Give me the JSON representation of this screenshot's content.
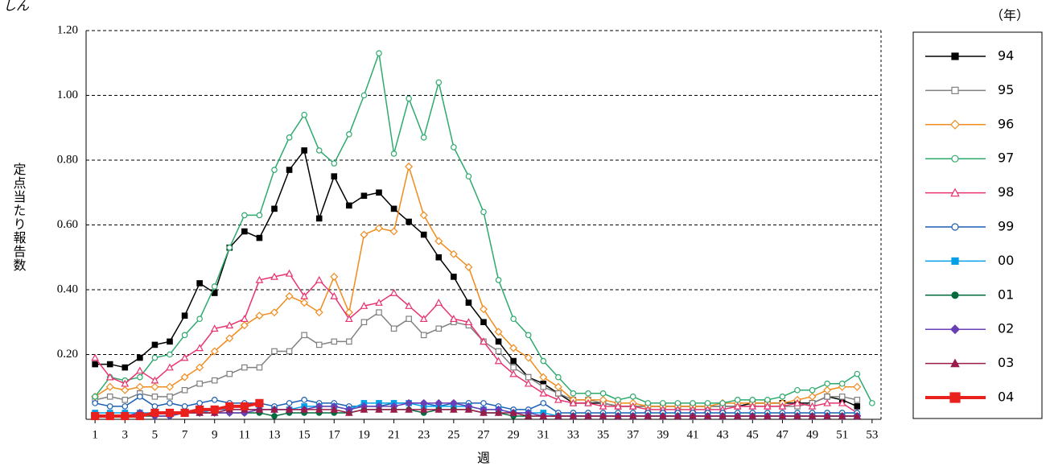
{
  "chart_data": {
    "type": "line",
    "title": "しん",
    "legend_title": "（年）",
    "ylabel": "定点当たり報告数",
    "xlabel": "週",
    "x": [
      1,
      2,
      3,
      4,
      5,
      6,
      7,
      8,
      9,
      10,
      11,
      12,
      13,
      14,
      15,
      16,
      17,
      18,
      19,
      20,
      21,
      22,
      23,
      24,
      25,
      26,
      27,
      28,
      29,
      30,
      31,
      32,
      33,
      34,
      35,
      36,
      37,
      38,
      39,
      40,
      41,
      42,
      43,
      44,
      45,
      46,
      47,
      48,
      49,
      50,
      51,
      52,
      53
    ],
    "xlim": [
      0.4,
      53.6
    ],
    "xticks": [
      1,
      3,
      5,
      7,
      9,
      11,
      13,
      15,
      17,
      19,
      21,
      23,
      25,
      27,
      29,
      31,
      33,
      35,
      37,
      39,
      41,
      43,
      45,
      47,
      49,
      51,
      53
    ],
    "ylim": [
      0,
      1.2
    ],
    "yticks": [
      {
        "value": 0.2,
        "label": "0.20"
      },
      {
        "value": 0.4,
        "label": "0.40"
      },
      {
        "value": 0.6,
        "label": "0.60"
      },
      {
        "value": 0.8,
        "label": "0.80"
      },
      {
        "value": 1.0,
        "label": "1.00"
      },
      {
        "value": 1.2,
        "label": "1.20"
      }
    ],
    "grid": true,
    "legend": "right",
    "series": [
      {
        "name": "94",
        "color": "#000000",
        "marker": "square",
        "filled": true,
        "line_width": 1.5,
        "values": [
          0.17,
          0.17,
          0.16,
          0.19,
          0.23,
          0.24,
          0.32,
          0.42,
          0.39,
          0.53,
          0.58,
          0.56,
          0.65,
          0.77,
          0.83,
          0.62,
          0.75,
          0.66,
          0.69,
          0.7,
          0.65,
          0.61,
          0.57,
          0.5,
          0.44,
          0.36,
          0.3,
          0.24,
          0.18,
          0.13,
          0.11,
          0.08,
          0.05,
          0.05,
          0.05,
          0.04,
          0.04,
          0.04,
          0.04,
          0.04,
          0.04,
          0.04,
          0.04,
          0.04,
          0.05,
          0.05,
          0.05,
          0.05,
          0.05,
          0.07,
          0.06,
          0.04,
          null
        ]
      },
      {
        "name": "95",
        "color": "#808080",
        "marker": "square",
        "filled": false,
        "line_width": 1.5,
        "values": [
          0.06,
          0.07,
          0.06,
          0.08,
          0.07,
          0.07,
          0.09,
          0.11,
          0.12,
          0.14,
          0.16,
          0.16,
          0.21,
          0.21,
          0.26,
          0.23,
          0.24,
          0.24,
          0.3,
          0.33,
          0.28,
          0.31,
          0.26,
          0.28,
          0.3,
          0.29,
          0.24,
          0.21,
          0.16,
          0.13,
          0.1,
          0.08,
          0.06,
          0.06,
          0.05,
          0.04,
          0.04,
          0.04,
          0.04,
          0.04,
          0.04,
          0.04,
          0.04,
          0.04,
          0.04,
          0.04,
          0.04,
          0.04,
          0.05,
          0.07,
          0.07,
          0.06,
          null
        ]
      },
      {
        "name": "96",
        "color": "#f08c1e",
        "marker": "diamond",
        "filled": false,
        "line_width": 1.5,
        "values": [
          0.07,
          0.1,
          0.09,
          0.1,
          0.1,
          0.1,
          0.13,
          0.16,
          0.21,
          0.25,
          0.29,
          0.32,
          0.33,
          0.38,
          0.36,
          0.33,
          0.44,
          0.33,
          0.57,
          0.59,
          0.58,
          0.78,
          0.63,
          0.55,
          0.51,
          0.47,
          0.34,
          0.27,
          0.22,
          0.19,
          0.13,
          0.1,
          0.06,
          0.06,
          0.06,
          0.05,
          0.05,
          0.04,
          0.04,
          0.04,
          0.04,
          0.04,
          0.05,
          0.05,
          0.05,
          0.05,
          0.05,
          0.06,
          0.07,
          0.09,
          0.1,
          0.1,
          null
        ]
      },
      {
        "name": "97",
        "color": "#2eaa6e",
        "marker": "circle",
        "filled": false,
        "line_width": 1.5,
        "values": [
          0.07,
          0.13,
          0.12,
          0.13,
          0.19,
          0.2,
          0.26,
          0.31,
          0.41,
          0.53,
          0.63,
          0.63,
          0.77,
          0.87,
          0.94,
          0.83,
          0.79,
          0.88,
          1.0,
          1.13,
          0.82,
          0.99,
          0.87,
          1.04,
          0.84,
          0.75,
          0.64,
          0.43,
          0.31,
          0.26,
          0.18,
          0.13,
          0.08,
          0.08,
          0.08,
          0.06,
          0.07,
          0.05,
          0.05,
          0.05,
          0.05,
          0.05,
          0.05,
          0.06,
          0.06,
          0.06,
          0.07,
          0.09,
          0.09,
          0.11,
          0.11,
          0.14,
          0.05
        ]
      },
      {
        "name": "98",
        "color": "#e8336f",
        "marker": "triangle",
        "filled": false,
        "line_width": 1.5,
        "values": [
          0.19,
          0.13,
          0.11,
          0.15,
          0.12,
          0.16,
          0.19,
          0.22,
          0.28,
          0.29,
          0.31,
          0.43,
          0.44,
          0.45,
          0.38,
          0.43,
          0.38,
          0.31,
          0.35,
          0.36,
          0.39,
          0.35,
          0.31,
          0.36,
          0.31,
          0.3,
          0.24,
          0.18,
          0.14,
          0.11,
          0.08,
          0.06,
          0.05,
          0.05,
          0.04,
          0.04,
          0.04,
          0.03,
          0.03,
          0.03,
          0.03,
          0.03,
          0.03,
          0.04,
          0.04,
          0.04,
          0.04,
          0.05,
          0.04,
          0.05,
          0.05,
          0.02,
          null
        ]
      },
      {
        "name": "99",
        "color": "#1a5fb4",
        "marker": "circle",
        "filled": false,
        "line_width": 1.5,
        "values": [
          0.05,
          0.04,
          0.04,
          0.07,
          0.04,
          0.05,
          0.04,
          0.05,
          0.06,
          0.05,
          0.05,
          0.05,
          0.04,
          0.05,
          0.06,
          0.05,
          0.05,
          0.04,
          0.04,
          0.04,
          0.05,
          0.05,
          0.05,
          0.04,
          0.05,
          0.05,
          0.05,
          0.04,
          0.03,
          0.03,
          0.05,
          0.02,
          0.02,
          0.02,
          0.02,
          0.02,
          0.02,
          0.02,
          0.02,
          0.02,
          0.02,
          0.02,
          0.02,
          0.02,
          0.02,
          0.02,
          0.02,
          0.02,
          0.02,
          0.02,
          0.02,
          0.02,
          null
        ]
      },
      {
        "name": "00",
        "color": "#00a0e9",
        "marker": "square",
        "filled": true,
        "line_width": 1.5,
        "values": [
          0.02,
          0.02,
          0.02,
          0.02,
          0.02,
          0.02,
          0.02,
          0.02,
          0.03,
          0.03,
          0.03,
          0.03,
          0.03,
          0.03,
          0.04,
          0.04,
          0.04,
          0.03,
          0.05,
          0.05,
          0.05,
          0.05,
          0.04,
          0.04,
          0.04,
          0.04,
          0.03,
          0.03,
          0.02,
          0.02,
          0.02,
          0.01,
          0.01,
          0.01,
          0.01,
          0.01,
          0.01,
          0.01,
          0.01,
          0.01,
          0.01,
          0.01,
          0.01,
          0.01,
          0.01,
          0.01,
          0.01,
          0.01,
          0.01,
          0.01,
          0.01,
          0.01,
          null
        ]
      },
      {
        "name": "01",
        "color": "#006b3c",
        "marker": "circle",
        "filled": true,
        "line_width": 1.5,
        "values": [
          0.01,
          0.01,
          0.01,
          0.01,
          0.01,
          0.01,
          0.02,
          0.02,
          0.02,
          0.02,
          0.02,
          0.02,
          0.01,
          0.02,
          0.02,
          0.02,
          0.02,
          0.02,
          0.03,
          0.03,
          0.03,
          0.03,
          0.02,
          0.03,
          0.03,
          0.03,
          0.02,
          0.02,
          0.01,
          0.01,
          0.01,
          0.01,
          0.01,
          0.01,
          0.01,
          0.01,
          0.01,
          0.01,
          0.01,
          0.01,
          0.01,
          0.01,
          0.01,
          0.01,
          0.01,
          0.01,
          0.01,
          0.01,
          0.01,
          0.01,
          0.01,
          0.01,
          null
        ]
      },
      {
        "name": "02",
        "color": "#6a3fb5",
        "marker": "diamond",
        "filled": true,
        "line_width": 1.5,
        "values": [
          0.01,
          0.01,
          0.01,
          0.02,
          0.01,
          0.01,
          0.02,
          0.02,
          0.02,
          0.02,
          0.02,
          0.03,
          0.03,
          0.03,
          0.03,
          0.04,
          0.04,
          0.03,
          0.04,
          0.04,
          0.04,
          0.05,
          0.05,
          0.05,
          0.05,
          0.04,
          0.03,
          0.03,
          0.02,
          0.02,
          0.01,
          0.01,
          0.01,
          0.01,
          0.01,
          0.01,
          0.01,
          0.01,
          0.01,
          0.01,
          0.01,
          0.01,
          0.01,
          0.01,
          0.01,
          0.01,
          0.01,
          0.01,
          0.01,
          0.01,
          0.01,
          0.01,
          null
        ]
      },
      {
        "name": "03",
        "color": "#9b1b4a",
        "marker": "triangle",
        "filled": true,
        "line_width": 1.5,
        "values": [
          0.01,
          0.01,
          0.01,
          0.01,
          0.02,
          0.02,
          0.02,
          0.02,
          0.02,
          0.03,
          0.03,
          0.03,
          0.03,
          0.03,
          0.03,
          0.03,
          0.03,
          0.02,
          0.03,
          0.03,
          0.03,
          0.03,
          0.03,
          0.03,
          0.03,
          0.03,
          0.02,
          0.02,
          0.02,
          0.01,
          0.01,
          0.01,
          0.01,
          0.01,
          0.01,
          0.01,
          0.01,
          0.01,
          0.01,
          0.01,
          0.01,
          0.01,
          0.01,
          0.01,
          0.01,
          0.01,
          0.01,
          0.01,
          0.01,
          0.01,
          0.01,
          0.01,
          null
        ]
      },
      {
        "name": "04",
        "color": "#e8201e",
        "marker": "square",
        "filled": true,
        "line_width": 4,
        "values": [
          0.01,
          0.01,
          0.01,
          0.01,
          0.02,
          0.02,
          0.02,
          0.03,
          0.03,
          0.04,
          0.04,
          0.05,
          null,
          null,
          null,
          null,
          null,
          null,
          null,
          null,
          null,
          null,
          null,
          null,
          null,
          null,
          null,
          null,
          null,
          null,
          null,
          null,
          null,
          null,
          null,
          null,
          null,
          null,
          null,
          null,
          null,
          null,
          null,
          null,
          null,
          null,
          null,
          null,
          null,
          null,
          null,
          null,
          null
        ]
      }
    ]
  }
}
